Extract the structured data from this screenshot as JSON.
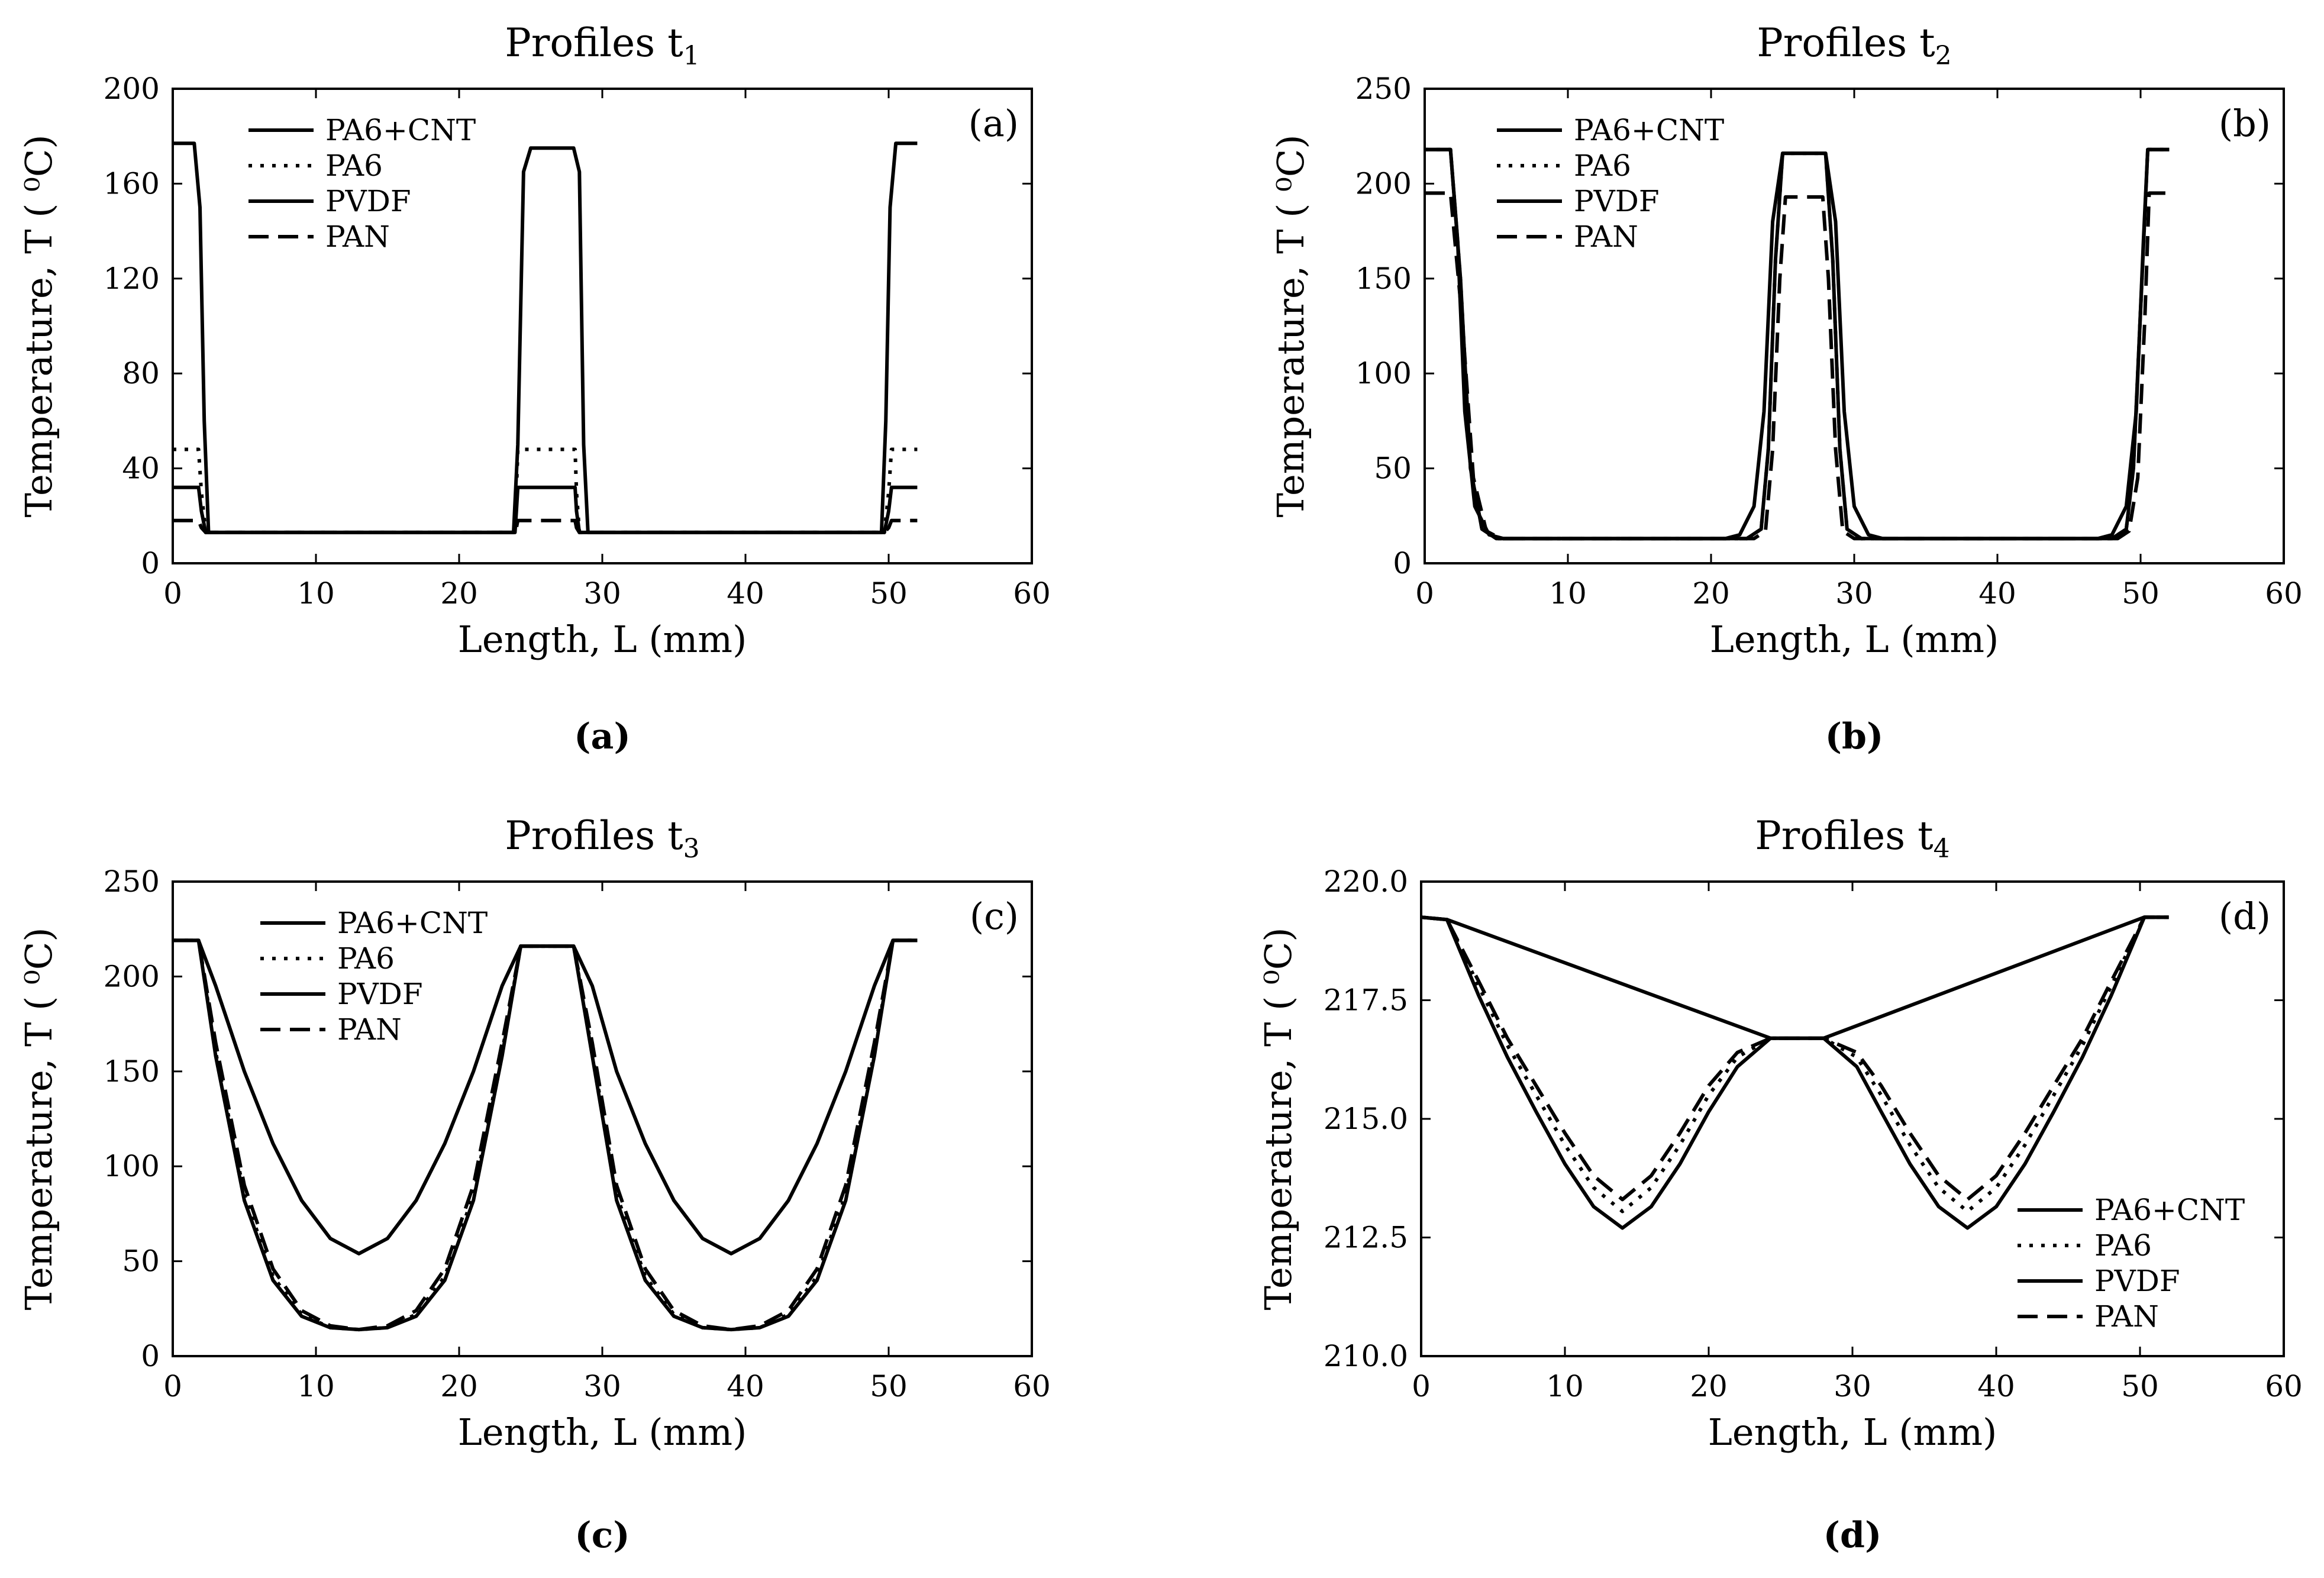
{
  "figure": {
    "captions": [
      "(a)",
      "(b)",
      "(c)",
      "(d)"
    ]
  },
  "chart_data": [
    {
      "type": "line",
      "panel": "a",
      "title": "Profiles  t",
      "title_sub": "1",
      "tag": "(a)",
      "caption": "(a)",
      "xlabel": "Length, L (mm)",
      "ylabel": "Temperature, T ( ⁰C)",
      "xlim": [
        0,
        60
      ],
      "ylim": [
        0,
        200
      ],
      "xticks": [
        0,
        10,
        20,
        30,
        40,
        50,
        60
      ],
      "yticks": [
        0,
        40,
        80,
        120,
        160,
        200
      ],
      "ytick_labels": [
        "0",
        "40",
        "80",
        "120",
        "160",
        "200"
      ],
      "legend_position": "top-left",
      "series": [
        {
          "name": "PA6+CNT",
          "style": "solid",
          "x": [
            0,
            1.5,
            1.9,
            2.2,
            2.5,
            23.8,
            24.1,
            24.5,
            25,
            28,
            28.4,
            28.7,
            29,
            49.5,
            49.8,
            50.1,
            50.5,
            52
          ],
          "y": [
            177,
            177,
            150,
            60,
            13,
            13,
            50,
            165,
            175,
            175,
            165,
            50,
            13,
            13,
            60,
            150,
            177,
            177
          ]
        },
        {
          "name": "PA6",
          "style": "dotted",
          "x": [
            0,
            1.8,
            2.0,
            2.3,
            23.9,
            24.0,
            24.1,
            28.1,
            28.2,
            28.4,
            49.7,
            50.0,
            50.2,
            52
          ],
          "y": [
            48,
            48,
            30,
            13,
            13,
            30,
            48,
            48,
            30,
            13,
            13,
            30,
            48,
            48
          ]
        },
        {
          "name": "PVDF",
          "style": "solid",
          "x": [
            0,
            1.8,
            2.0,
            2.3,
            23.9,
            24.0,
            24.1,
            28.1,
            28.2,
            28.4,
            49.7,
            50.0,
            50.2,
            52
          ],
          "y": [
            32,
            32,
            22,
            13,
            13,
            22,
            32,
            32,
            22,
            13,
            13,
            22,
            32,
            32
          ]
        },
        {
          "name": "PAN",
          "style": "dashed",
          "x": [
            0,
            1.8,
            2.0,
            2.3,
            23.9,
            24.0,
            24.1,
            28.1,
            28.2,
            28.4,
            49.7,
            50.0,
            50.2,
            52
          ],
          "y": [
            18,
            18,
            15,
            13,
            13,
            15,
            18,
            18,
            15,
            13,
            13,
            15,
            18,
            18
          ]
        }
      ]
    },
    {
      "type": "line",
      "panel": "b",
      "title": "Profiles  t",
      "title_sub": "2",
      "tag": "(b)",
      "caption": "(b)",
      "xlabel": "Length, L (mm)",
      "ylabel": "Temperature, T ( ⁰C)",
      "xlim": [
        0,
        60
      ],
      "ylim": [
        0,
        250
      ],
      "xticks": [
        0,
        10,
        20,
        30,
        40,
        50,
        60
      ],
      "yticks": [
        0,
        50,
        100,
        150,
        200,
        250
      ],
      "ytick_labels": [
        "0",
        "50",
        "100",
        "150",
        "200",
        "250"
      ],
      "legend_position": "top-left",
      "series": [
        {
          "name": "PA6+CNT",
          "style": "solid",
          "x": [
            0,
            1.8,
            2.3,
            2.8,
            3.5,
            4.5,
            5.5,
            21,
            22,
            23,
            23.7,
            24.3,
            25,
            28,
            28.7,
            29.3,
            30,
            31,
            32,
            47,
            48,
            49,
            49.7,
            50.2,
            50.5,
            52
          ],
          "y": [
            218,
            218,
            170,
            80,
            30,
            15,
            13,
            13,
            15,
            30,
            80,
            180,
            216,
            216,
            180,
            80,
            30,
            15,
            13,
            13,
            15,
            30,
            80,
            170,
            218,
            218
          ]
        },
        {
          "name": "PA6",
          "style": "dotted",
          "x": [
            0,
            1.8,
            2.5,
            3.2,
            4,
            5,
            22.5,
            23.5,
            24,
            24.5,
            25,
            28,
            28.5,
            29,
            29.5,
            30.5,
            48,
            49,
            49.5,
            50.1,
            50.5,
            52
          ],
          "y": [
            218,
            218,
            150,
            50,
            18,
            13,
            13,
            18,
            60,
            160,
            216,
            216,
            160,
            60,
            18,
            13,
            13,
            18,
            50,
            150,
            218,
            218
          ]
        },
        {
          "name": "PVDF",
          "style": "solid",
          "x": [
            0,
            1.8,
            2.5,
            3.2,
            4,
            5,
            22.5,
            23.5,
            24,
            24.5,
            25,
            28,
            28.5,
            29,
            29.5,
            30.5,
            48,
            49,
            49.5,
            50.1,
            50.5,
            52
          ],
          "y": [
            218,
            218,
            150,
            50,
            18,
            13,
            13,
            18,
            60,
            160,
            216,
            216,
            160,
            60,
            18,
            13,
            13,
            18,
            50,
            150,
            218,
            218
          ]
        },
        {
          "name": "PAN",
          "style": "dashed",
          "x": [
            0,
            1.8,
            2.6,
            3.4,
            4.3,
            5.3,
            23,
            23.8,
            24.3,
            24.8,
            25.2,
            27.8,
            28.2,
            28.7,
            29.2,
            30,
            48.4,
            49.2,
            49.8,
            50.3,
            50.6,
            52
          ],
          "y": [
            195,
            195,
            130,
            45,
            17,
            13,
            13,
            17,
            60,
            150,
            193,
            193,
            150,
            60,
            17,
            13,
            13,
            17,
            45,
            130,
            195,
            195
          ]
        }
      ]
    },
    {
      "type": "line",
      "panel": "c",
      "title": "Profiles  t",
      "title_sub": "3",
      "tag": "(c)",
      "caption": "(c)",
      "xlabel": "Length, L (mm)",
      "ylabel": "Temperature, T ( ⁰C)",
      "xlim": [
        0,
        60
      ],
      "ylim": [
        0,
        250
      ],
      "xticks": [
        0,
        10,
        20,
        30,
        40,
        50,
        60
      ],
      "yticks": [
        0,
        50,
        100,
        150,
        200,
        250
      ],
      "ytick_labels": [
        "0",
        "50",
        "100",
        "150",
        "200",
        "250"
      ],
      "legend_position": "top-left",
      "series": [
        {
          "name": "PA6+CNT",
          "style": "solid",
          "x": [
            0,
            1.8,
            3,
            5,
            7,
            9,
            11,
            13,
            15,
            17,
            19,
            21,
            23,
            24.3,
            28,
            29.3,
            31,
            33,
            35,
            37,
            39,
            41,
            43,
            45,
            47,
            49,
            50.3,
            52
          ],
          "y": [
            219,
            219,
            195,
            150,
            112,
            82,
            62,
            54,
            62,
            82,
            112,
            150,
            195,
            216,
            216,
            195,
            150,
            112,
            82,
            62,
            54,
            62,
            82,
            112,
            150,
            195,
            219,
            219
          ]
        },
        {
          "name": "PA6",
          "style": "dotted",
          "x": [
            0,
            1.8,
            3,
            5,
            7,
            9,
            11,
            13,
            15,
            17,
            19,
            21,
            23,
            24.3,
            28,
            29.3,
            31,
            33,
            35,
            37,
            39,
            41,
            43,
            45,
            47,
            49,
            50.3,
            52
          ],
          "y": [
            219,
            219,
            160,
            85,
            42,
            22,
            15,
            14,
            15,
            22,
            42,
            85,
            160,
            216,
            216,
            160,
            85,
            42,
            22,
            15,
            14,
            15,
            22,
            42,
            85,
            160,
            219,
            219
          ]
        },
        {
          "name": "PVDF",
          "style": "solid",
          "x": [
            0,
            1.8,
            3,
            5,
            7,
            9,
            11,
            13,
            15,
            17,
            19,
            21,
            23,
            24.3,
            28,
            29.3,
            31,
            33,
            35,
            37,
            39,
            41,
            43,
            45,
            47,
            49,
            50.3,
            52
          ],
          "y": [
            219,
            219,
            158,
            82,
            40,
            21,
            15,
            14,
            15,
            21,
            40,
            82,
            158,
            216,
            216,
            158,
            82,
            40,
            21,
            15,
            14,
            15,
            21,
            40,
            82,
            158,
            219,
            219
          ]
        },
        {
          "name": "PAN",
          "style": "dashed",
          "x": [
            0,
            1.8,
            3,
            5,
            7,
            9,
            11,
            13,
            15,
            17,
            19,
            21,
            23,
            24.3,
            28,
            29.3,
            31,
            33,
            35,
            37,
            39,
            41,
            43,
            45,
            47,
            49,
            50.3,
            52
          ],
          "y": [
            219,
            219,
            165,
            90,
            46,
            24,
            16,
            14,
            16,
            24,
            46,
            90,
            165,
            216,
            216,
            165,
            90,
            46,
            24,
            16,
            14,
            16,
            24,
            46,
            90,
            165,
            219,
            219
          ]
        }
      ]
    },
    {
      "type": "line",
      "panel": "d",
      "title": "Profiles  t",
      "title_sub": "4",
      "tag": "(d)",
      "caption": "(d)",
      "xlabel": "Length, L (mm)",
      "ylabel": "Temperature, T ( ⁰C)",
      "xlim": [
        0,
        60
      ],
      "ylim": [
        210,
        220
      ],
      "xticks": [
        0,
        10,
        20,
        30,
        40,
        50,
        60
      ],
      "yticks": [
        210,
        212.5,
        215,
        217.5,
        220
      ],
      "ytick_labels": [
        "210.0",
        "212.5",
        "215.0",
        "217.5",
        "220.0"
      ],
      "legend_position": "bottom-right",
      "series": [
        {
          "name": "PA6+CNT",
          "style": "solid",
          "x": [
            0,
            1.8,
            24.3,
            28,
            50.3,
            52
          ],
          "y": [
            219.25,
            219.2,
            216.7,
            216.7,
            219.25,
            219.25
          ]
        },
        {
          "name": "PA6",
          "style": "dotted",
          "x": [
            0,
            1.8,
            4,
            6,
            8,
            10,
            12,
            14,
            16,
            18,
            20,
            22,
            24.3,
            28,
            30.3,
            32,
            34,
            36,
            38,
            40,
            42,
            44,
            46,
            48,
            50.3,
            52
          ],
          "y": [
            219.25,
            219.2,
            217.8,
            216.55,
            215.5,
            214.45,
            213.55,
            213.05,
            213.55,
            214.45,
            215.5,
            216.3,
            216.7,
            216.7,
            216.3,
            215.5,
            214.45,
            213.55,
            213.05,
            213.55,
            214.45,
            215.5,
            216.55,
            217.8,
            219.25,
            219.25
          ]
        },
        {
          "name": "PVDF",
          "style": "solid",
          "x": [
            0,
            1.8,
            4,
            6,
            8,
            10,
            12,
            14,
            16,
            18,
            20,
            22,
            24.3,
            28,
            30.3,
            32,
            34,
            36,
            38,
            40,
            42,
            44,
            46,
            48,
            50.3,
            52
          ],
          "y": [
            219.25,
            219.2,
            217.6,
            216.3,
            215.15,
            214.05,
            213.15,
            212.7,
            213.15,
            214.05,
            215.15,
            216.1,
            216.7,
            216.7,
            216.1,
            215.15,
            214.05,
            213.15,
            212.7,
            213.15,
            214.05,
            215.15,
            216.3,
            217.6,
            219.25,
            219.25
          ]
        },
        {
          "name": "PAN",
          "style": "dashed",
          "x": [
            0,
            1.8,
            4,
            6,
            8,
            10,
            12,
            14,
            16,
            18,
            20,
            22,
            24.3,
            28,
            30.3,
            32,
            34,
            36,
            38,
            40,
            42,
            44,
            46,
            48,
            50.3,
            52
          ],
          "y": [
            219.25,
            219.2,
            217.9,
            216.7,
            215.7,
            214.7,
            213.8,
            213.3,
            213.8,
            214.7,
            215.7,
            216.4,
            216.7,
            216.7,
            216.4,
            215.7,
            214.7,
            213.8,
            213.3,
            213.8,
            214.7,
            215.7,
            216.7,
            217.9,
            219.25,
            219.25
          ]
        }
      ]
    }
  ]
}
